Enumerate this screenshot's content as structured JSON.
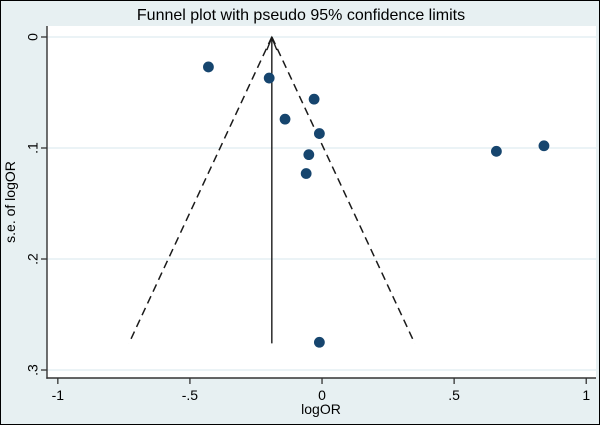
{
  "window": {
    "description": "Stata-style funnel plot figure"
  },
  "colors": {
    "background": "#e7f0f2",
    "plot_background": "#ffffff",
    "gridline": "#dfecf0",
    "axis": "#333333",
    "marker": "#16456e",
    "funnel_line": "#1a1a1a",
    "text": "#000000",
    "border": "#000000"
  },
  "chart_data": {
    "type": "scatter",
    "title": "Funnel plot with pseudo 95% confidence limits",
    "xlabel": "logOR",
    "ylabel": "s.e. of logOR",
    "legend": "none",
    "grid": "horizontal-y-gridlines-only",
    "y_axis_reversed": true,
    "xlim": [
      -1.041,
      1.037
    ],
    "ylim": [
      -0.0099,
      0.3072
    ],
    "x_ticks": {
      "values": [
        -1,
        -0.5,
        0,
        0.5,
        1
      ],
      "labels": [
        "-1",
        "-.5",
        "0",
        ".5",
        "1"
      ]
    },
    "y_ticks": {
      "values": [
        0,
        0.1,
        0.2,
        0.3
      ],
      "labels": [
        "0",
        ".1",
        ".2",
        ".3"
      ]
    },
    "center_logOR": -0.19,
    "pseudo_ci_multiplier": 1.96,
    "funnel_bottom_se": 0.276,
    "points": [
      {
        "logOR": -0.43,
        "se": 0.027
      },
      {
        "logOR": -0.2,
        "se": 0.037
      },
      {
        "logOR": -0.03,
        "se": 0.056
      },
      {
        "logOR": -0.14,
        "se": 0.074
      },
      {
        "logOR": -0.01,
        "se": 0.087
      },
      {
        "logOR": -0.05,
        "se": 0.106
      },
      {
        "logOR": -0.06,
        "se": 0.123
      },
      {
        "logOR": 0.66,
        "se": 0.103
      },
      {
        "logOR": 0.84,
        "se": 0.098
      },
      {
        "logOR": -0.01,
        "se": 0.275
      }
    ]
  }
}
